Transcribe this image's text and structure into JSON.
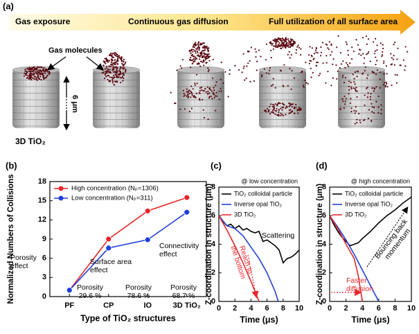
{
  "panel_a": {
    "label": "(a)",
    "stages": [
      "Gas exposure",
      "Continuous gas diffusion",
      "Full utilization of all surface area"
    ],
    "gas_label": "Gas molecules",
    "height_label": "6 μm",
    "structure_label": "3D TiO₂"
  },
  "chart_data": [
    {
      "type": "line",
      "panel_label": "(b)",
      "x_label": "Type of TiO₂ structures",
      "y_label": "Normalized Numbers of Collisions",
      "categories": [
        "PF",
        "CP",
        "IO",
        "3D TiO₂"
      ],
      "series": [
        {
          "name": "High concentration (Nₚ=1306)",
          "color": "#e8262a",
          "values": [
            1,
            9,
            13.4,
            15.5
          ]
        },
        {
          "name": "Low concentration (Nₚ=311)",
          "color": "#1f3fd8",
          "values": [
            1,
            7.6,
            8.9,
            13.2
          ]
        }
      ],
      "ylim": [
        0,
        18
      ],
      "yticks": [
        0,
        3,
        6,
        9,
        12,
        15,
        18
      ],
      "annotations": [
        [
          "Porosity",
          "effect"
        ],
        [
          "Surface area",
          "effect"
        ],
        [
          "Connectivity",
          "effect"
        ],
        [
          "Porosity",
          "29.6 %"
        ],
        [
          "Porosity",
          "78.6 %"
        ],
        [
          "Porosity",
          "68.7 %"
        ]
      ]
    },
    {
      "type": "line",
      "panel_label": "(c)",
      "subtitle": "@ low concentration",
      "x_label": "Time (μs)",
      "y_label": "Z-coordination in structure (μm)",
      "xlim": [
        0,
        10
      ],
      "xticks": [
        0,
        2,
        4,
        6,
        8,
        10
      ],
      "ylim": [
        0,
        8
      ],
      "yticks": [
        0,
        2,
        4,
        6,
        8
      ],
      "series": [
        {
          "name": "TiO₂ colloidal particle",
          "color": "#000000",
          "x": [
            0,
            0.5,
            1,
            1.5,
            2,
            2.5,
            3,
            3.5,
            4,
            4.5,
            5,
            5.5,
            6,
            6.5,
            7,
            7.5,
            8,
            8.5,
            9,
            9.5,
            10
          ],
          "values": [
            6,
            5.6,
            5.3,
            5.4,
            5.1,
            5.3,
            5,
            5.1,
            4.9,
            4.8,
            4.9,
            4.2,
            4.3,
            4.1,
            3.9,
            3.6,
            2.7,
            3,
            3.1,
            3.3,
            3.6
          ]
        },
        {
          "name": "Inverse opal TiO₂",
          "color": "#1f3fd8",
          "x": [
            0,
            1,
            2,
            3,
            4,
            5,
            6,
            7,
            7.4
          ],
          "values": [
            6,
            5.3,
            5.1,
            4.6,
            3.8,
            3,
            2,
            0.7,
            0
          ]
        },
        {
          "name": "3D TiO₂",
          "color": "#e8262a",
          "x": [
            0,
            1,
            2,
            3,
            4,
            5
          ],
          "values": [
            6,
            5,
            3.9,
            2.7,
            1.4,
            0
          ]
        }
      ],
      "annotations": [
        [
          "Scattering"
        ],
        [
          "Reach to",
          "the bottom"
        ]
      ]
    },
    {
      "type": "line",
      "panel_label": "(d)",
      "subtitle": "@ high concentration",
      "x_label": "Time (μs)",
      "y_label": "Z-coordination in structure (μm)",
      "xlim": [
        0,
        10
      ],
      "xticks": [
        0,
        2,
        4,
        6,
        8,
        10
      ],
      "ylim": [
        0,
        8
      ],
      "yticks": [
        0,
        2,
        4,
        6,
        8
      ],
      "series": [
        {
          "name": "TiO₂ colloidal particle",
          "color": "#000000",
          "x": [
            0,
            0.5,
            1,
            1.5,
            2,
            2.5,
            3,
            3.5,
            4,
            5,
            6,
            7,
            8,
            9,
            10
          ],
          "values": [
            6,
            5.4,
            4.9,
            4.5,
            4.2,
            3.9,
            4,
            4.1,
            4.4,
            4.9,
            5.5,
            6,
            6.4,
            6.9,
            7.3
          ]
        },
        {
          "name": "Inverse opal TiO₂",
          "color": "#1f3fd8",
          "x": [
            0,
            1,
            2,
            3,
            4,
            5,
            6
          ],
          "values": [
            6,
            5.2,
            4.3,
            3.3,
            2.2,
            1.1,
            0
          ]
        },
        {
          "name": "3D TiO₂",
          "color": "#e8262a",
          "x": [
            0,
            1,
            2,
            3,
            3.5,
            4
          ],
          "values": [
            6,
            5.1,
            4,
            3,
            1.8,
            0
          ]
        }
      ],
      "annotations": [
        [
          "Bouncing back",
          "momentum"
        ],
        [
          "Faster",
          "diffusion"
        ]
      ]
    }
  ]
}
